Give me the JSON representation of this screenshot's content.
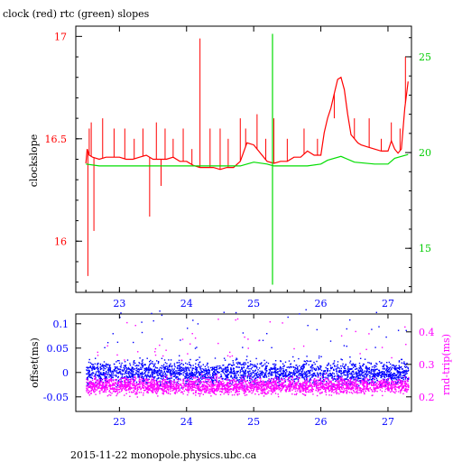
{
  "title": "clock (red) rtc (green) slopes",
  "footer": "2015-11-22 monopole.physics.ubc.ca",
  "colors": {
    "clock": "#ff0000",
    "rtc": "#00dd00",
    "offset": "#0000ff",
    "rndtrip": "#ff00ff",
    "frame": "#000000"
  },
  "chart_data": [
    {
      "type": "line",
      "title": "clock (red) rtc (green) slopes",
      "xlabel": "",
      "ylabel": "clockslope",
      "y2label": "",
      "xlim": [
        22.35,
        27.35
      ],
      "ylim": [
        15.75,
        17.05
      ],
      "y2lim": [
        12.7,
        26.6
      ],
      "xticks": [
        23,
        24,
        25,
        26,
        27
      ],
      "yticks": [
        16,
        16.5,
        17
      ],
      "y2ticks": [
        15,
        20,
        25
      ],
      "grid": false,
      "series": [
        {
          "name": "clock",
          "axis": "left",
          "color": "#ff0000",
          "x": [
            22.5,
            22.52,
            22.55,
            22.6,
            22.7,
            22.8,
            22.9,
            23.0,
            23.1,
            23.2,
            23.3,
            23.4,
            23.5,
            23.6,
            23.7,
            23.8,
            23.9,
            24.0,
            24.1,
            24.2,
            24.3,
            24.4,
            24.5,
            24.6,
            24.7,
            24.8,
            24.9,
            25.0,
            25.1,
            25.2,
            25.3,
            25.4,
            25.5,
            25.6,
            25.7,
            25.8,
            25.9,
            26.0,
            26.05,
            26.1,
            26.15,
            26.2,
            26.25,
            26.3,
            26.35,
            26.4,
            26.45,
            26.5,
            26.55,
            26.6,
            26.7,
            26.8,
            26.9,
            27.0,
            27.05,
            27.1,
            27.15,
            27.2,
            27.25,
            27.3
          ],
          "y": [
            16.38,
            16.45,
            16.42,
            16.41,
            16.4,
            16.41,
            16.41,
            16.41,
            16.4,
            16.4,
            16.41,
            16.42,
            16.4,
            16.4,
            16.4,
            16.41,
            16.39,
            16.39,
            16.37,
            16.36,
            16.36,
            16.36,
            16.35,
            16.36,
            16.36,
            16.39,
            16.48,
            16.47,
            16.43,
            16.39,
            16.38,
            16.39,
            16.39,
            16.41,
            16.41,
            16.44,
            16.42,
            16.42,
            16.53,
            16.6,
            16.65,
            16.72,
            16.79,
            16.8,
            16.74,
            16.62,
            16.52,
            16.5,
            16.48,
            16.47,
            16.46,
            16.45,
            16.44,
            16.44,
            16.49,
            16.45,
            16.43,
            16.45,
            16.65,
            16.78
          ]
        },
        {
          "name": "clock spikes",
          "axis": "left",
          "color": "#ff0000",
          "x": [
            22.53,
            22.55,
            22.58,
            22.62,
            22.75,
            22.92,
            23.08,
            23.22,
            23.35,
            23.45,
            23.55,
            23.62,
            23.68,
            23.8,
            23.95,
            24.08,
            24.2,
            24.35,
            24.5,
            24.62,
            24.8,
            24.88,
            25.05,
            25.18,
            25.3,
            25.5,
            25.75,
            25.95,
            26.2,
            26.5,
            26.72,
            26.9,
            27.05,
            27.18,
            27.26
          ],
          "y": [
            15.83,
            16.55,
            16.58,
            16.05,
            16.6,
            16.55,
            16.55,
            16.5,
            16.55,
            16.12,
            16.58,
            16.27,
            16.55,
            16.5,
            16.55,
            16.45,
            16.99,
            16.55,
            16.55,
            16.5,
            16.6,
            16.55,
            16.62,
            16.5,
            16.6,
            16.5,
            16.55,
            16.5,
            16.6,
            16.6,
            16.6,
            16.5,
            16.58,
            16.55,
            16.9
          ]
        },
        {
          "name": "rtc",
          "axis": "right",
          "color": "#00dd00",
          "x": [
            22.5,
            22.7,
            23.0,
            23.5,
            24.0,
            24.5,
            24.8,
            24.9,
            25.0,
            25.2,
            25.3,
            25.5,
            25.8,
            26.0,
            26.1,
            26.3,
            26.5,
            26.8,
            27.0,
            27.1,
            27.2,
            27.3
          ],
          "y": [
            19.4,
            19.3,
            19.3,
            19.3,
            19.3,
            19.3,
            19.3,
            19.4,
            19.5,
            19.4,
            19.3,
            19.3,
            19.3,
            19.4,
            19.6,
            19.8,
            19.5,
            19.4,
            19.4,
            19.7,
            19.8,
            19.9
          ]
        },
        {
          "name": "rtc spike",
          "axis": "right",
          "color": "#00dd00",
          "x": [
            25.28,
            25.28
          ],
          "y": [
            13.1,
            26.2
          ]
        }
      ]
    },
    {
      "type": "scatter",
      "xlabel": "",
      "ylabel": "offset(ms)",
      "y2label": "rnd-trip(ms)",
      "xlim": [
        22.35,
        27.35
      ],
      "ylim": [
        -0.08,
        0.12
      ],
      "y2lim": [
        0.155,
        0.455
      ],
      "xticks": [
        23,
        24,
        25,
        26,
        27
      ],
      "yticks": [
        -0.05,
        0,
        0.05,
        0.1
      ],
      "y2ticks": [
        0.2,
        0.3,
        0.4
      ],
      "grid": false,
      "series": [
        {
          "name": "offset",
          "axis": "left",
          "color": "#0000ff",
          "x_range": [
            22.5,
            27.3
          ],
          "band_center": 0.0,
          "band_halfwidth": 0.03
        },
        {
          "name": "rnd-trip",
          "axis": "right",
          "color": "#ff00ff",
          "x_range": [
            22.5,
            27.3
          ],
          "band_center": 0.235,
          "band_halfwidth": 0.03
        }
      ]
    }
  ]
}
